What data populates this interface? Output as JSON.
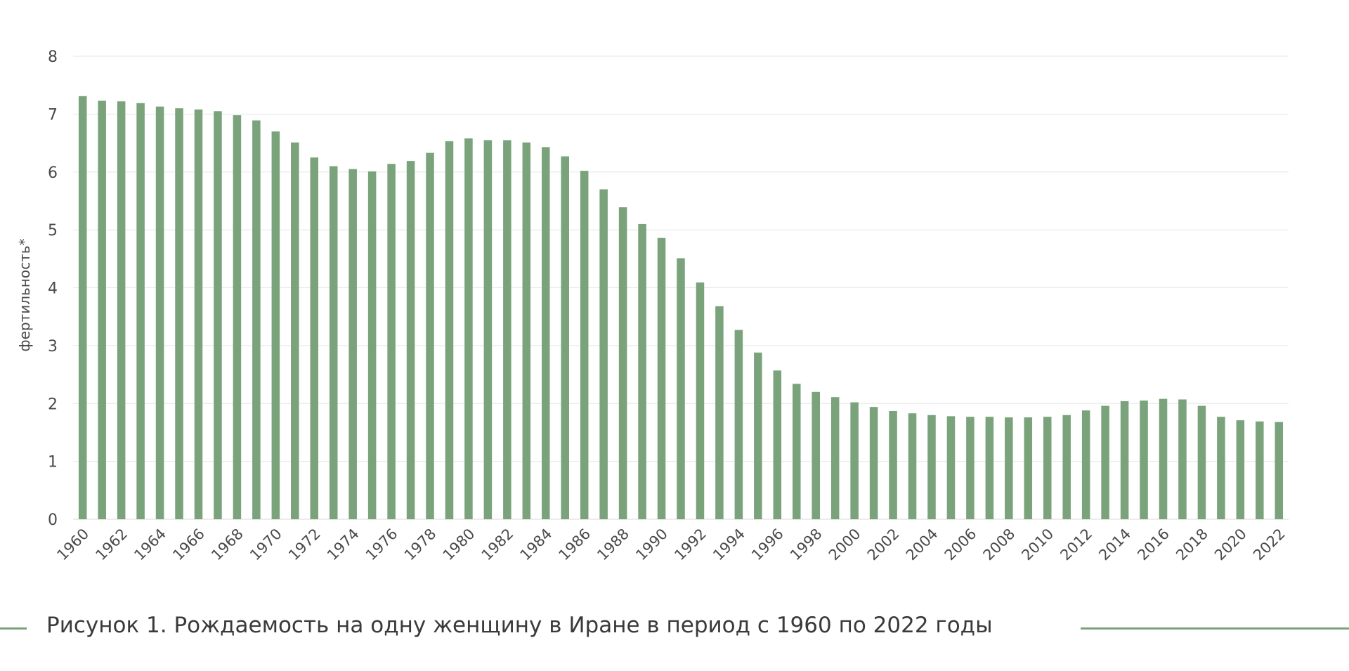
{
  "chart_data": {
    "type": "bar",
    "ylabel": "фертильность*",
    "xlabel": "",
    "ylim": [
      0,
      8
    ],
    "yticks": [
      0,
      1,
      2,
      3,
      4,
      5,
      6,
      7,
      8
    ],
    "grid": true,
    "bar_color": "#7aa37c",
    "categories": [
      "1960",
      "1961",
      "1962",
      "1963",
      "1964",
      "1965",
      "1966",
      "1967",
      "1968",
      "1969",
      "1970",
      "1971",
      "1972",
      "1973",
      "1974",
      "1975",
      "1976",
      "1977",
      "1978",
      "1979",
      "1980",
      "1981",
      "1982",
      "1983",
      "1984",
      "1985",
      "1986",
      "1987",
      "1988",
      "1989",
      "1990",
      "1991",
      "1992",
      "1993",
      "1994",
      "1995",
      "1996",
      "1997",
      "1998",
      "1999",
      "2000",
      "2001",
      "2002",
      "2003",
      "2004",
      "2005",
      "2006",
      "2007",
      "2008",
      "2009",
      "2010",
      "2011",
      "2012",
      "2013",
      "2014",
      "2015",
      "2016",
      "2017",
      "2018",
      "2019",
      "2020",
      "2021",
      "2022"
    ],
    "x_tick_labels": [
      "1960",
      "1962",
      "1964",
      "1966",
      "1968",
      "1970",
      "1972",
      "1974",
      "1976",
      "1978",
      "1980",
      "1982",
      "1984",
      "1986",
      "1988",
      "1990",
      "1992",
      "1994",
      "1996",
      "1998",
      "2000",
      "2002",
      "2004",
      "2006",
      "2008",
      "2010",
      "2012",
      "2014",
      "2016",
      "2018",
      "2020",
      "2022"
    ],
    "values": [
      7.31,
      7.23,
      7.22,
      7.19,
      7.13,
      7.1,
      7.08,
      7.05,
      6.98,
      6.89,
      6.7,
      6.51,
      6.25,
      6.1,
      6.05,
      6.01,
      6.14,
      6.19,
      6.33,
      6.53,
      6.58,
      6.55,
      6.55,
      6.51,
      6.43,
      6.27,
      6.02,
      5.7,
      5.39,
      5.1,
      4.86,
      4.51,
      4.09,
      3.68,
      3.27,
      2.88,
      2.57,
      2.34,
      2.2,
      2.11,
      2.02,
      1.94,
      1.87,
      1.83,
      1.8,
      1.78,
      1.77,
      1.77,
      1.76,
      1.76,
      1.77,
      1.8,
      1.88,
      1.96,
      2.04,
      2.05,
      2.08,
      2.07,
      1.96,
      1.77,
      1.71,
      1.69,
      1.68
    ]
  },
  "caption": {
    "text": "Рисунок 1. Рождаемость на одну женщину в Иране в период с 1960 по 2022 годы",
    "line_color": "#7aa37c"
  }
}
